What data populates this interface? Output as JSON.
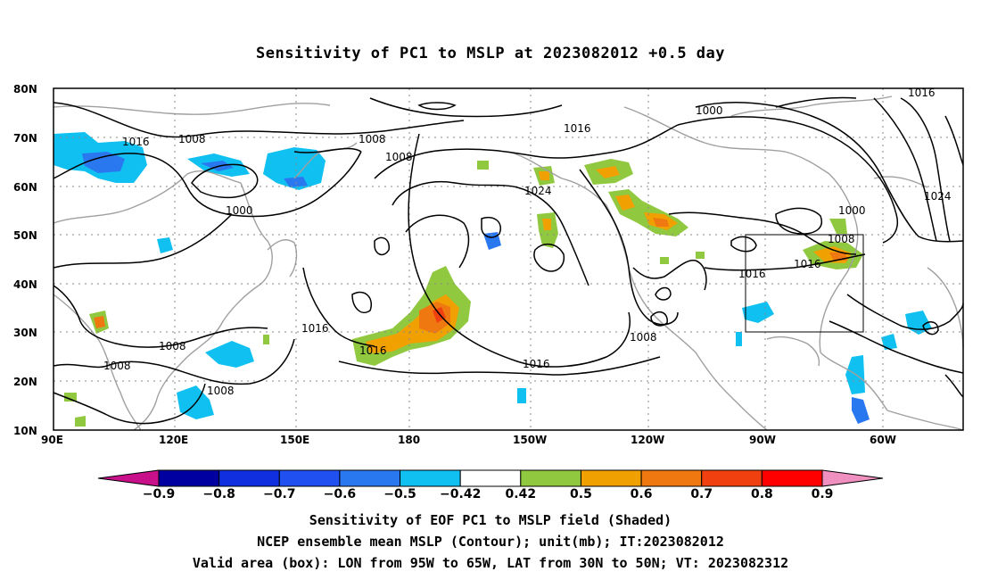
{
  "title": "Sensitivity of PC1 to MSLP at 2023082012 +0.5 day",
  "map": {
    "lat_labels": [
      "80N",
      "70N",
      "60N",
      "50N",
      "40N",
      "30N",
      "20N",
      "10N"
    ],
    "lon_labels": [
      "90E",
      "120E",
      "150E",
      "180",
      "150W",
      "120W",
      "90W",
      "60W"
    ],
    "contour_labels": [
      "1016",
      "1008",
      "1008",
      "1000",
      "1008",
      "1016",
      "1024",
      "1000",
      "1016",
      "1000",
      "1008",
      "1016",
      "1016",
      "1024",
      "1016",
      "1008",
      "1008",
      "1008",
      "1016",
      "1008",
      "1016"
    ],
    "valid_box": {
      "lon": [
        "95W",
        "65W"
      ],
      "lat": [
        "30N",
        "50N"
      ]
    }
  },
  "colorbar": {
    "labels": [
      "−0.9",
      "−0.8",
      "−0.7",
      "−0.6",
      "−0.5",
      "−0.42",
      "0.42",
      "0.5",
      "0.6",
      "0.7",
      "0.8",
      "0.9"
    ],
    "colors": [
      "#0000a0",
      "#1030e0",
      "#2050f0",
      "#2a78f0",
      "#10c0f0",
      "#ffffff",
      "#90c840",
      "#f0a000",
      "#f07810",
      "#f04010",
      "#ff0000"
    ],
    "low_end_color": "#c8108a",
    "high_end_color": "#f090c0"
  },
  "captions": {
    "line1": "Sensitivity of EOF PC1 to MSLP field (Shaded)",
    "line2": "NCEP ensemble mean MSLP (Contour); unit(mb); IT:2023082012",
    "line3": "Valid area (box): LON from 95W to 65W, LAT from 30N to 50N; VT: 2023082312"
  }
}
